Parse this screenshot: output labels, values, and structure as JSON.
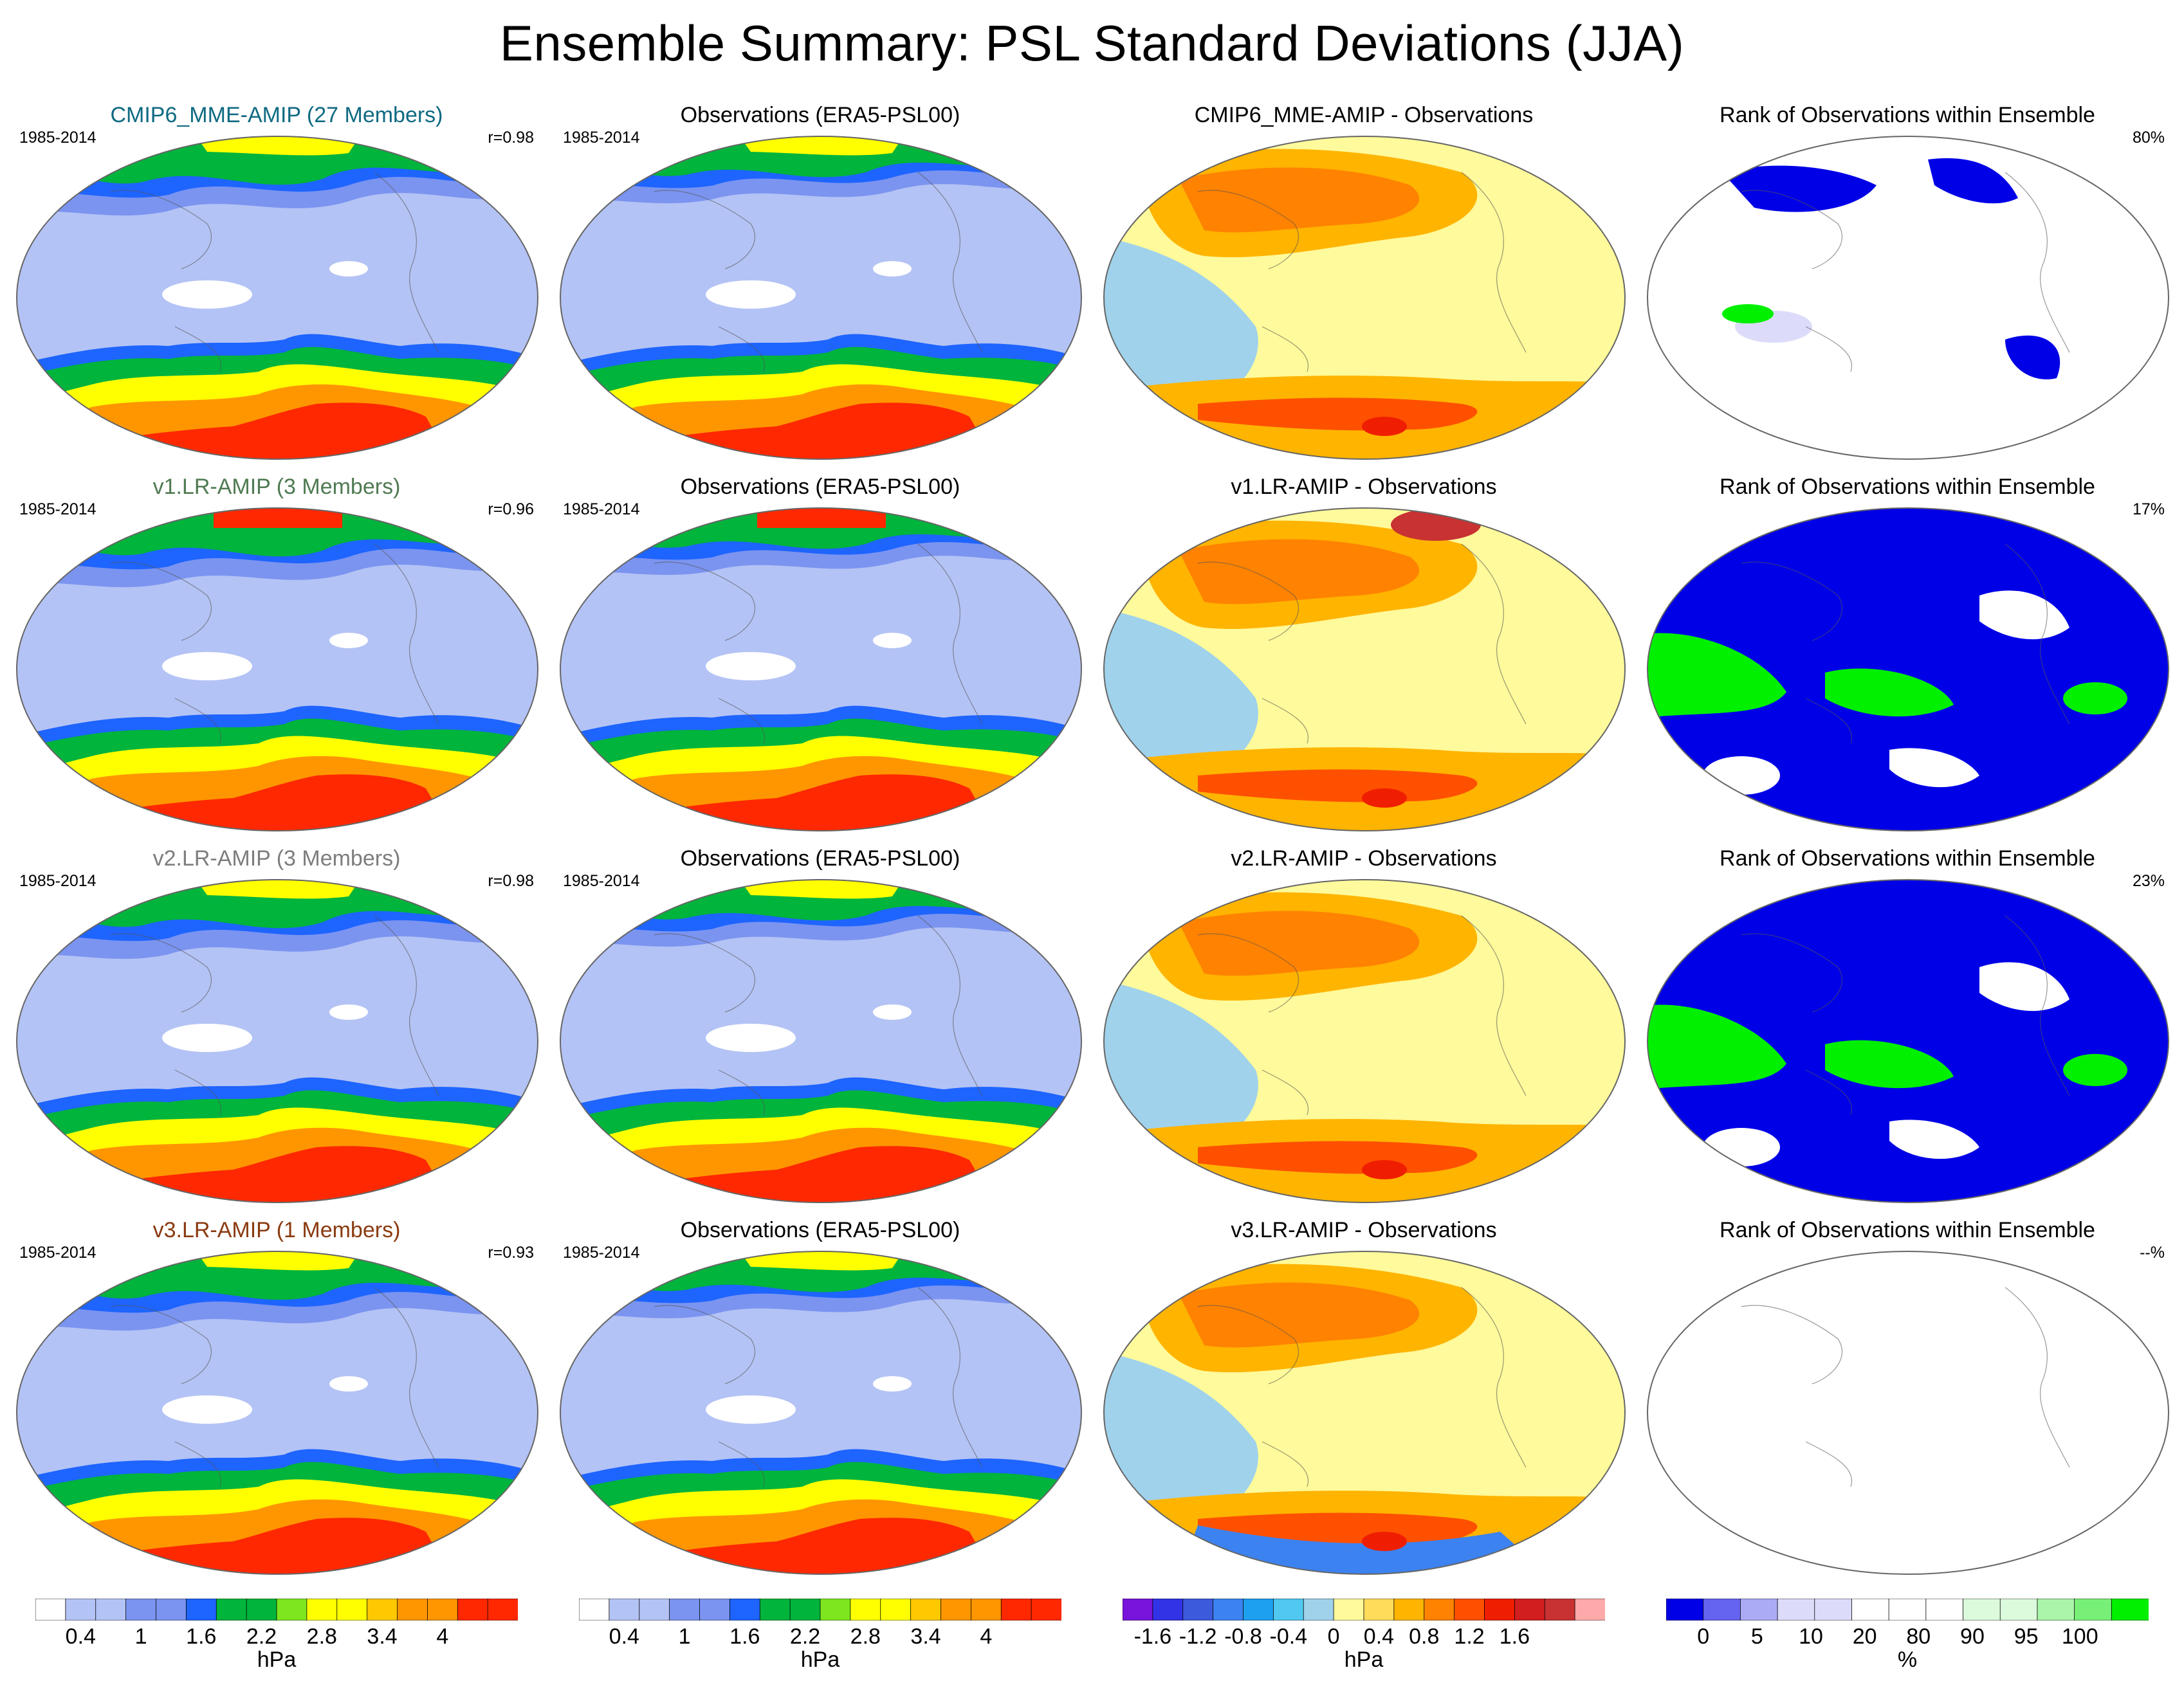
{
  "title": "Ensemble Summary: PSL Standard Deviations (JJA)",
  "rows": [
    {
      "model": {
        "title": "CMIP6_MME-AMIP (27 Members)",
        "title_color": "#0f6a82",
        "years": "1985-2014",
        "corr": "r=0.98"
      },
      "obs": {
        "title": "Observations (ERA5-PSL00)",
        "years": "1985-2014"
      },
      "diff": {
        "title": "CMIP6_MME-AMIP - Observations"
      },
      "rank": {
        "title": "Rank of Observations within Ensemble",
        "pct": "80%"
      }
    },
    {
      "model": {
        "title": "v1.LR-AMIP (3 Members)",
        "title_color": "#4f7a52",
        "years": "1985-2014",
        "corr": "r=0.96"
      },
      "obs": {
        "title": "Observations (ERA5-PSL00)",
        "years": "1985-2014"
      },
      "diff": {
        "title": "v1.LR-AMIP - Observations"
      },
      "rank": {
        "title": "Rank of Observations within Ensemble",
        "pct": "17%"
      }
    },
    {
      "model": {
        "title": "v2.LR-AMIP (3 Members)",
        "title_color": "#7d7d7d",
        "years": "1985-2014",
        "corr": "r=0.98"
      },
      "obs": {
        "title": "Observations (ERA5-PSL00)",
        "years": "1985-2014"
      },
      "diff": {
        "title": "v2.LR-AMIP - Observations"
      },
      "rank": {
        "title": "Rank of Observations within Ensemble",
        "pct": "23%"
      }
    },
    {
      "model": {
        "title": "v3.LR-AMIP (1 Members)",
        "title_color": "#8a3a10",
        "years": "1985-2014",
        "corr": "r=0.93"
      },
      "obs": {
        "title": "Observations (ERA5-PSL00)",
        "years": "1985-2014"
      },
      "diff": {
        "title": "v3.LR-AMIP - Observations"
      },
      "rank": {
        "title": "Rank of Observations within Ensemble",
        "pct": "--%"
      }
    }
  ],
  "colorbars": {
    "std": {
      "unit": "hPa",
      "ticks": [
        "0.4",
        "1",
        "1.6",
        "2.2",
        "2.8",
        "3.4",
        "4"
      ],
      "colors": [
        "#ffffff",
        "#b4c3f5",
        "#b4c3f5",
        "#7b94f0",
        "#7b94f0",
        "#1e64ff",
        "#00b43c",
        "#00b43c",
        "#7ee61e",
        "#ffff00",
        "#ffff00",
        "#ffc800",
        "#ff9600",
        "#ff9600",
        "#ff2800",
        "#ff2800"
      ]
    },
    "diff": {
      "unit": "hPa",
      "ticks": [
        "-1.6",
        "-1.2",
        "-0.8",
        "-0.4",
        "0",
        "0.4",
        "0.8",
        "1.2",
        "1.6"
      ],
      "colors": [
        "#7814dc",
        "#3232e6",
        "#3c5adc",
        "#3c82f0",
        "#1ea0f0",
        "#50c8f0",
        "#a0d2eb",
        "#fffa9b",
        "#ffdc5a",
        "#ffb400",
        "#ff8200",
        "#ff5000",
        "#f01e00",
        "#d21e1e",
        "#c83232",
        "#ffaaaa"
      ]
    },
    "rank": {
      "unit": "%",
      "ticks": [
        "0",
        "5",
        "10",
        "20",
        "80",
        "90",
        "95",
        "100"
      ],
      "colors": [
        "#0000e6",
        "#6464f0",
        "#aaaaf5",
        "#dcdcfa",
        "#dcdcfa",
        "#ffffff",
        "#ffffff",
        "#ffffff",
        "#dcfadc",
        "#dcfadc",
        "#aaf5aa",
        "#78f078",
        "#00f000"
      ]
    }
  }
}
